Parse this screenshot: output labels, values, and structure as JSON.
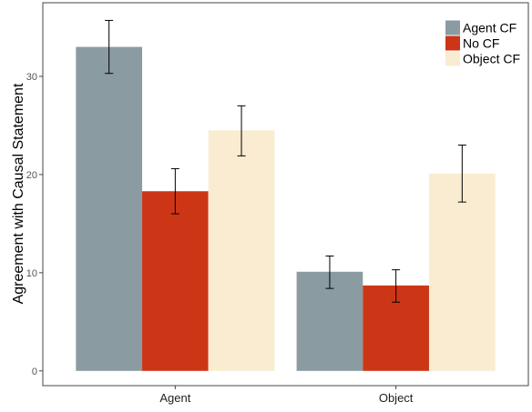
{
  "chart_data": {
    "type": "bar",
    "categories": [
      "Agent",
      "Object"
    ],
    "ylabel": "Agreement with Causal Statement",
    "xlabel": "",
    "title": "",
    "ylim": [
      -1.5,
      37.5
    ],
    "yticks": [
      0,
      10,
      20,
      30
    ],
    "legend_position": "top-right",
    "grid": false,
    "series": [
      {
        "name": "Agent CF",
        "color": "#8a9ba2",
        "values": [
          33.0,
          10.1
        ],
        "error": [
          [
            30.3,
            35.7
          ],
          [
            8.4,
            11.7
          ]
        ]
      },
      {
        "name": "No CF",
        "color": "#cc3616",
        "values": [
          18.3,
          8.7
        ],
        "error": [
          [
            16.0,
            20.6
          ],
          [
            7.0,
            10.3
          ]
        ]
      },
      {
        "name": "Object CF",
        "color": "#faecd1",
        "values": [
          24.5,
          20.1
        ],
        "error": [
          [
            21.9,
            27.0
          ],
          [
            17.2,
            23.0
          ]
        ]
      }
    ]
  }
}
